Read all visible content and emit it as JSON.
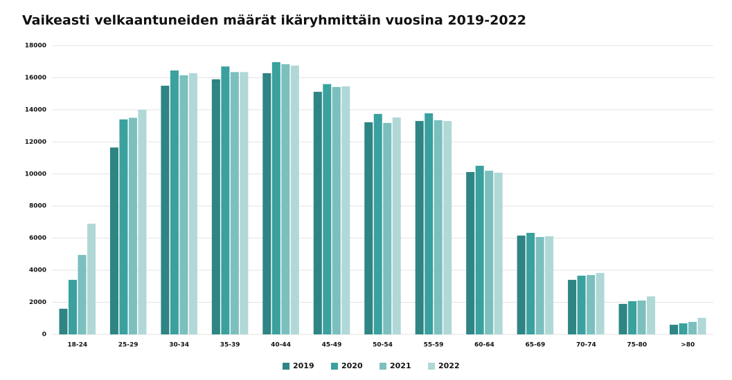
{
  "chart_data": {
    "type": "bar",
    "title": "Vaikeasti velkaantuneiden määrät ikäryhmittäin vuosina 2019-2022",
    "categories": [
      "18-24",
      "25-29",
      "30-34",
      "35-39",
      "40-44",
      "45-49",
      "50-54",
      "55-59",
      "60-64",
      "65-69",
      "70-74",
      "75-80",
      ">80"
    ],
    "series": [
      {
        "name": "2019",
        "color": "#2e8584",
        "values": [
          1600,
          11650,
          15500,
          15900,
          16280,
          15120,
          13220,
          13300,
          10120,
          6160,
          3400,
          1900,
          600
        ]
      },
      {
        "name": "2020",
        "color": "#3aa19f",
        "values": [
          3400,
          13400,
          16450,
          16700,
          16970,
          15600,
          13740,
          13780,
          10510,
          6330,
          3660,
          2070,
          690
        ]
      },
      {
        "name": "2021",
        "color": "#7bbfbe",
        "values": [
          4950,
          13500,
          16150,
          16350,
          16840,
          15420,
          13180,
          13350,
          10200,
          6070,
          3700,
          2110,
          780
        ]
      },
      {
        "name": "2022",
        "color": "#b0d8d7",
        "values": [
          6900,
          14000,
          16280,
          16350,
          16750,
          15460,
          13520,
          13300,
          10080,
          6120,
          3830,
          2370,
          1030
        ]
      }
    ],
    "ylim": [
      0,
      18000
    ],
    "yticks": [
      0,
      2000,
      4000,
      6000,
      8000,
      10000,
      12000,
      14000,
      16000,
      18000
    ],
    "grid": true,
    "legend": "bottom"
  }
}
